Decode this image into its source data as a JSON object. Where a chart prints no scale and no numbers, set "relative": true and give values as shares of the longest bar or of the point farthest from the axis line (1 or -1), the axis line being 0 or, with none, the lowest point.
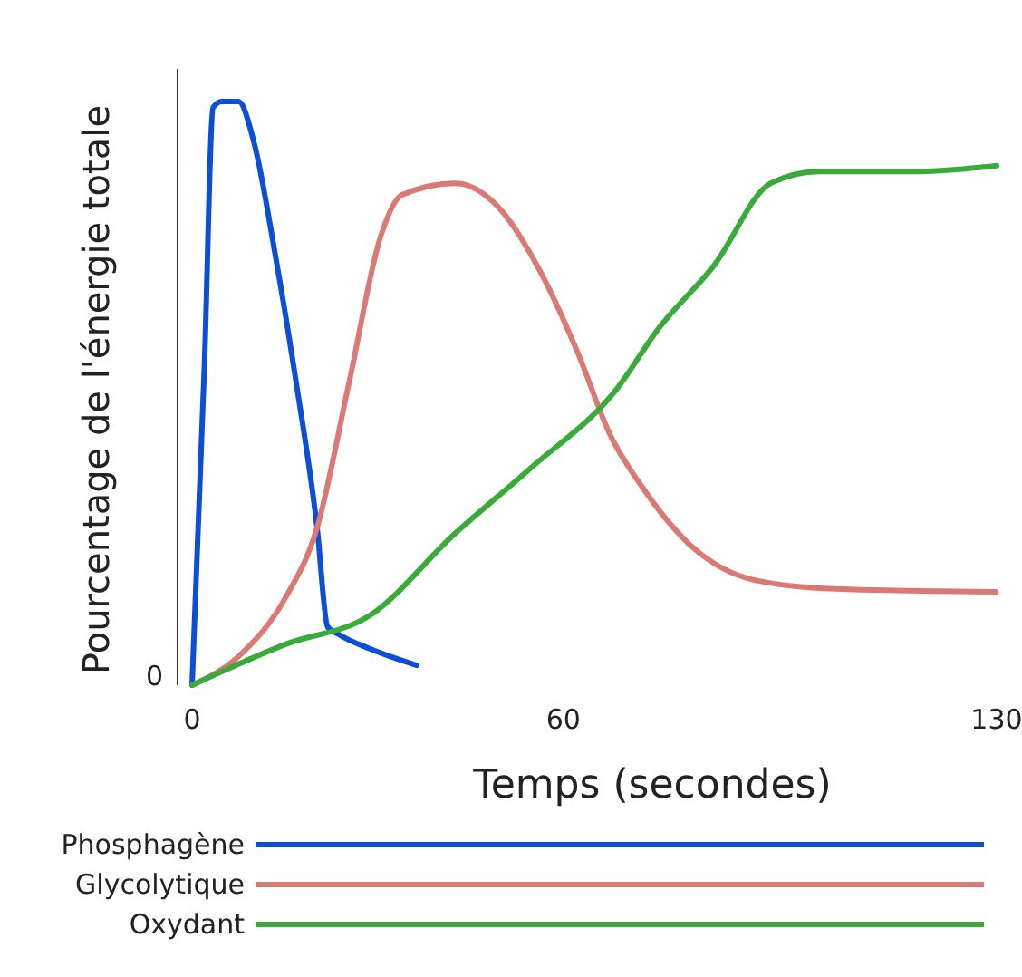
{
  "chart_data": {
    "type": "line",
    "relative": true,
    "xlabel": "Temps (secondes)",
    "ylabel": "Pourcentage de l'énergie totale",
    "xlim": [
      0,
      130
    ],
    "xticks": [
      0,
      60,
      130
    ],
    "legend": "bottom",
    "annotations": [
      "0"
    ],
    "series": [
      {
        "name": "Phosphagène",
        "color": "#0a4fd6",
        "x": [
          0,
          2,
          3.4,
          4.8,
          7.5,
          10,
          13.4,
          16.8,
          20.2,
          21.9,
          23.7,
          28.8,
          36.3
        ],
        "values": [
          0,
          0.55,
          0.99,
          1,
          1,
          0.93,
          0.74,
          0.52,
          0.27,
          0.1,
          0.087,
          0.062,
          0.034
        ]
      },
      {
        "name": "Glycolytique",
        "color": "#d97a74",
        "x": [
          0,
          8.2,
          15.1,
          20.2,
          25.4,
          30.5,
          33.9,
          42.5,
          49.4,
          56.2,
          62.3,
          67.5,
          72.7,
          80.5,
          90.9,
          103.9,
          129.9
        ],
        "values": [
          0,
          0.056,
          0.15,
          0.27,
          0.52,
          0.77,
          0.84,
          0.86,
          0.82,
          0.71,
          0.57,
          0.43,
          0.34,
          0.24,
          0.18,
          0.165,
          0.16
        ]
      },
      {
        "name": "Oxydant",
        "color": "#3aaa3a",
        "x": [
          0,
          15.1,
          28.8,
          42.5,
          54.5,
          68.8,
          75.3,
          84.4,
          93.5,
          101.3,
          116.9,
          130
        ],
        "values": [
          0,
          0.07,
          0.12,
          0.26,
          0.37,
          0.51,
          0.61,
          0.72,
          0.86,
          0.88,
          0.88,
          0.89
        ]
      }
    ]
  }
}
